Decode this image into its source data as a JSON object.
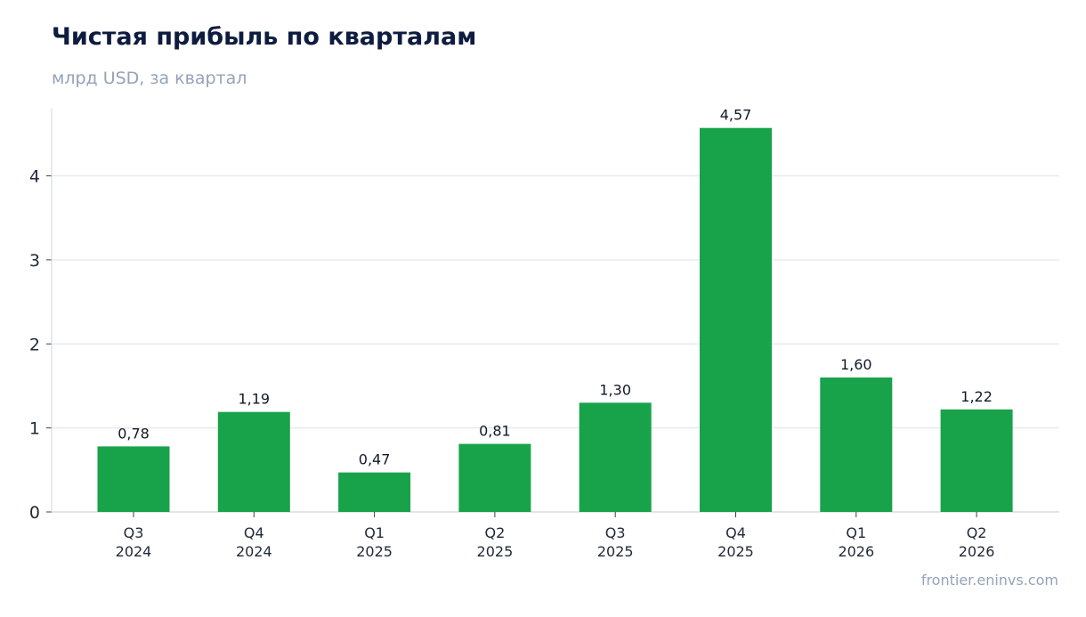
{
  "header": {
    "title": "Чистая прибыль по кварталам",
    "subtitle": "млрд USD, за квартал"
  },
  "footer": {
    "source": "frontier.eninvs.com"
  },
  "colors": {
    "bar": "#18a34a",
    "grid": "#e5e7eb",
    "axis": "#d1d5db"
  },
  "chart_data": {
    "type": "bar",
    "title": "Чистая прибыль по кварталам",
    "subtitle": "млрд USD, за квартал",
    "categories": [
      [
        "Q3",
        "2024"
      ],
      [
        "Q4",
        "2024"
      ],
      [
        "Q1",
        "2025"
      ],
      [
        "Q2",
        "2025"
      ],
      [
        "Q3",
        "2025"
      ],
      [
        "Q4",
        "2025"
      ],
      [
        "Q1",
        "2026"
      ],
      [
        "Q2",
        "2026"
      ]
    ],
    "values": [
      0.78,
      1.19,
      0.47,
      0.81,
      1.3,
      4.57,
      1.6,
      1.22
    ],
    "value_labels": [
      "0,78",
      "1,19",
      "0,47",
      "0,81",
      "1,30",
      "4,57",
      "1,60",
      "1,22"
    ],
    "yticks": [
      0,
      1,
      2,
      3,
      4
    ],
    "ylim": [
      0,
      4.8
    ],
    "grid": true,
    "legend": "none"
  }
}
